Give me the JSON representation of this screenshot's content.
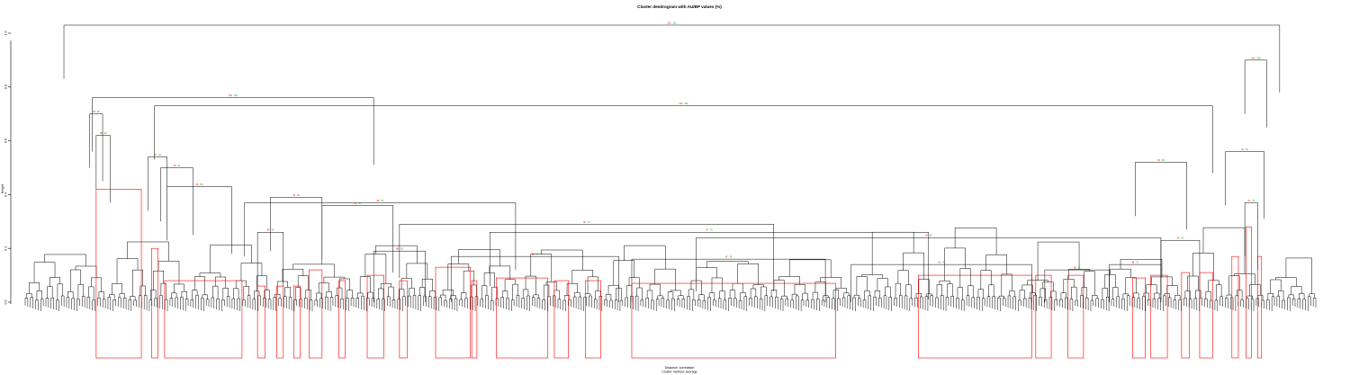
{
  "chart_data": {
    "type": "dendrogram",
    "title": "Cluster dendrogram with AU/BP values (%)",
    "xlabel": "Distance: correlation",
    "xlabel_line2": "Cluster method: average",
    "ylabel": "Height",
    "yticks": [
      0.0,
      0.2,
      0.4,
      0.6,
      0.8,
      1.0
    ],
    "ytick_labels": [
      "0.0",
      "0.2",
      "0.4",
      "0.6",
      "0.8",
      "1.0"
    ],
    "ylim": [
      0.0,
      1.05
    ],
    "leaf_count": 500,
    "merges": [
      {
        "x0": 0.03,
        "x1": 0.972,
        "h": 1.03,
        "au": "100",
        "bp": "100"
      },
      {
        "x0": 0.052,
        "x1": 0.27,
        "h": 0.76,
        "au": "100",
        "bp": "100"
      },
      {
        "x0": 0.1,
        "x1": 0.92,
        "h": 0.73,
        "au": "100",
        "bp": "100"
      },
      {
        "x0": 0.945,
        "x1": 0.962,
        "h": 0.9,
        "au": "100",
        "bp": "100"
      },
      {
        "x0": 0.93,
        "x1": 0.96,
        "h": 0.56,
        "au": "94",
        "bp": "92"
      },
      {
        "x0": 0.05,
        "x1": 0.06,
        "h": 0.7,
        "au": "98",
        "bp": "96"
      },
      {
        "x0": 0.055,
        "x1": 0.066,
        "h": 0.62,
        "au": "95",
        "bp": "90"
      },
      {
        "x0": 0.095,
        "x1": 0.11,
        "h": 0.54,
        "au": "97",
        "bp": "94"
      },
      {
        "x0": 0.105,
        "x1": 0.13,
        "h": 0.5,
        "au": "99",
        "bp": "93"
      },
      {
        "x0": 0.11,
        "x1": 0.16,
        "h": 0.43,
        "au": "96",
        "bp": "89"
      },
      {
        "x0": 0.17,
        "x1": 0.38,
        "h": 0.37,
        "au": "98",
        "bp": "81"
      },
      {
        "x0": 0.19,
        "x1": 0.23,
        "h": 0.39,
        "au": "93",
        "bp": "62"
      },
      {
        "x0": 0.23,
        "x1": 0.285,
        "h": 0.36,
        "au": "91",
        "bp": "55"
      },
      {
        "x0": 0.29,
        "x1": 0.58,
        "h": 0.29,
        "au": "95",
        "bp": "73"
      },
      {
        "x0": 0.36,
        "x1": 0.7,
        "h": 0.26,
        "au": "97",
        "bp": "70"
      },
      {
        "x0": 0.52,
        "x1": 0.88,
        "h": 0.24,
        "au": "92",
        "bp": "48"
      },
      {
        "x0": 0.88,
        "x1": 0.91,
        "h": 0.23,
        "au": "90",
        "bp": "51"
      },
      {
        "x0": 0.86,
        "x1": 0.9,
        "h": 0.52,
        "au": "96",
        "bp": "88"
      },
      {
        "x0": 0.945,
        "x1": 0.955,
        "h": 0.37,
        "au": "93",
        "bp": "76"
      },
      {
        "x0": 0.18,
        "x1": 0.2,
        "h": 0.26,
        "au": "86",
        "bp": "41"
      },
      {
        "x0": 0.27,
        "x1": 0.31,
        "h": 0.19,
        "au": "88",
        "bp": "39"
      },
      {
        "x0": 0.33,
        "x1": 0.46,
        "h": 0.17,
        "au": "89",
        "bp": "44"
      },
      {
        "x0": 0.47,
        "x1": 0.62,
        "h": 0.16,
        "au": "87",
        "bp": "35"
      },
      {
        "x0": 0.64,
        "x1": 0.78,
        "h": 0.14,
        "au": "91",
        "bp": "42"
      },
      {
        "x0": 0.79,
        "x1": 0.84,
        "h": 0.12,
        "au": "85",
        "bp": "30"
      },
      {
        "x0": 0.84,
        "x1": 0.88,
        "h": 0.14,
        "au": "88",
        "bp": "37"
      }
    ],
    "cluster_boxes": [
      {
        "x0": 0.055,
        "x1": 0.09,
        "ymax": 0.42
      },
      {
        "x0": 0.098,
        "x1": 0.103,
        "ymax": 0.2
      },
      {
        "x0": 0.108,
        "x1": 0.168,
        "ymax": 0.08
      },
      {
        "x0": 0.18,
        "x1": 0.186,
        "ymax": 0.06
      },
      {
        "x0": 0.195,
        "x1": 0.2,
        "ymax": 0.06
      },
      {
        "x0": 0.208,
        "x1": 0.213,
        "ymax": 0.06
      },
      {
        "x0": 0.22,
        "x1": 0.23,
        "ymax": 0.12
      },
      {
        "x0": 0.243,
        "x1": 0.248,
        "ymax": 0.08
      },
      {
        "x0": 0.265,
        "x1": 0.278,
        "ymax": 0.1
      },
      {
        "x0": 0.29,
        "x1": 0.296,
        "ymax": 0.08
      },
      {
        "x0": 0.318,
        "x1": 0.345,
        "ymax": 0.13
      },
      {
        "x0": 0.346,
        "x1": 0.35,
        "ymax": 0.08
      },
      {
        "x0": 0.365,
        "x1": 0.405,
        "ymax": 0.09
      },
      {
        "x0": 0.41,
        "x1": 0.421,
        "ymax": 0.08
      },
      {
        "x0": 0.434,
        "x1": 0.446,
        "ymax": 0.08
      },
      {
        "x0": 0.47,
        "x1": 0.628,
        "ymax": 0.07
      },
      {
        "x0": 0.692,
        "x1": 0.78,
        "ymax": 0.1
      },
      {
        "x0": 0.783,
        "x1": 0.795,
        "ymax": 0.1
      },
      {
        "x0": 0.808,
        "x1": 0.82,
        "ymax": 0.1
      },
      {
        "x0": 0.858,
        "x1": 0.868,
        "ymax": 0.09
      },
      {
        "x0": 0.872,
        "x1": 0.885,
        "ymax": 0.1
      },
      {
        "x0": 0.896,
        "x1": 0.902,
        "ymax": 0.11
      },
      {
        "x0": 0.91,
        "x1": 0.92,
        "ymax": 0.11
      },
      {
        "x0": 0.935,
        "x1": 0.94,
        "ymax": 0.17
      },
      {
        "x0": 0.946,
        "x1": 0.95,
        "ymax": 0.28
      },
      {
        "x0": 0.955,
        "x1": 0.958,
        "ymax": 0.17
      }
    ],
    "grid": false,
    "legend": "none",
    "colors": {
      "branch": "#000000",
      "au": "#ff0000",
      "bp": "#00a000",
      "edge": "#777777",
      "cluster_box": "#ff0000"
    }
  }
}
